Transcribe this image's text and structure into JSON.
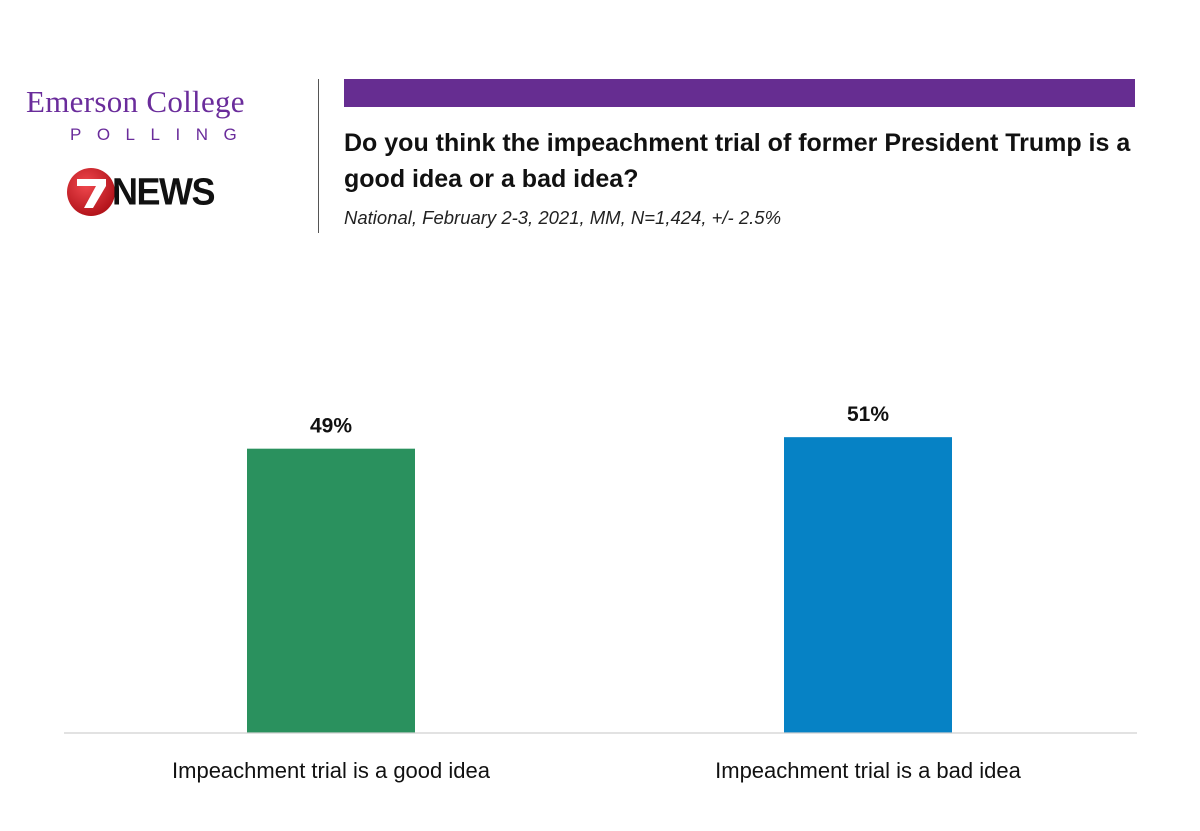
{
  "branding": {
    "org_name": "Emerson College",
    "org_sub": "POLLING",
    "news_word": "NEWS",
    "news_number": "7",
    "purple": "#6a2c9b",
    "news_red": "#d8232a"
  },
  "header": {
    "accent_color": "#662d91"
  },
  "chart_data": {
    "type": "bar",
    "title": "Do you think the impeachment trial of former President Trump is a good idea or a bad idea?",
    "subtitle": "National, February 2-3, 2021, MM, N=1,424, +/- 2.5%",
    "categories": [
      "Impeachment trial is a good idea",
      "Impeachment trial is a bad idea"
    ],
    "values": [
      49,
      51
    ],
    "value_labels": [
      "49%",
      "51%"
    ],
    "colors": [
      "#2a915e",
      "#0682c5"
    ],
    "xlabel": "",
    "ylabel": "",
    "ylim": [
      0,
      100
    ],
    "grid": false,
    "legend": "none",
    "axis_color": "#d0d0d0"
  }
}
